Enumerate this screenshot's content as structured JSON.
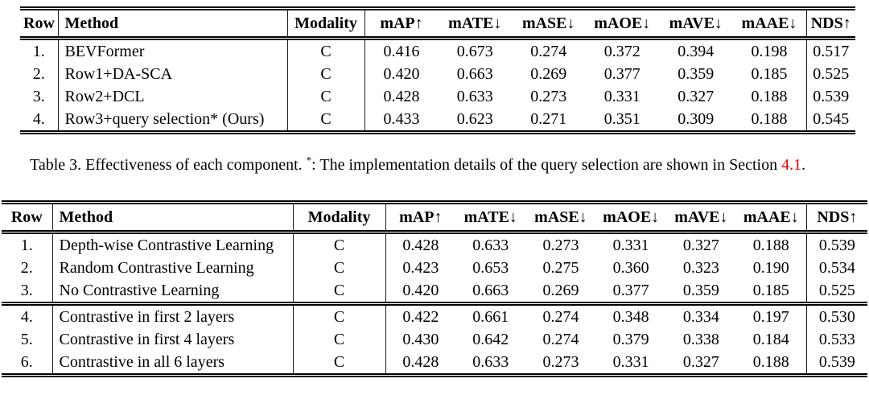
{
  "colors": {
    "background": "#ffffff",
    "text": "#000000",
    "section_link_red": "#ee0000",
    "rule": "#000000"
  },
  "table1": {
    "columns": [
      "Row",
      "Method",
      "Modality",
      "mAP↑",
      "mATE↓",
      "mASE↓",
      "mAOE↓",
      "mAVE↓",
      "mAAE↓",
      "NDS↑"
    ],
    "rows": [
      [
        "1.",
        "BEVFormer",
        "C",
        "0.416",
        "0.673",
        "0.274",
        "0.372",
        "0.394",
        "0.198",
        "0.517"
      ],
      [
        "2.",
        "Row1+DA-SCA",
        "C",
        "0.420",
        "0.663",
        "0.269",
        "0.377",
        "0.359",
        "0.185",
        "0.525"
      ],
      [
        "3.",
        "Row2+DCL",
        "C",
        "0.428",
        "0.633",
        "0.273",
        "0.331",
        "0.327",
        "0.188",
        "0.539"
      ],
      [
        "4.",
        "Row3+query selection* (Ours)",
        "C",
        "0.433",
        "0.623",
        "0.271",
        "0.351",
        "0.309",
        "0.188",
        "0.545"
      ]
    ]
  },
  "caption": {
    "text1": "Table 3. Effectiveness of each component. ",
    "star": "*",
    "text2": ": The implementation details of the query selection are shown in Section ",
    "link": "4.1",
    "text3": "."
  },
  "table2": {
    "columns": [
      "Row",
      "Method",
      "Modality",
      "mAP↑",
      "mATE↓",
      "mASE↓",
      "mAOE↓",
      "mAVE↓",
      "mAAE↓",
      "NDS↑"
    ],
    "group1_rows": [
      [
        "1.",
        "Depth-wise Contrastive Learning",
        "C",
        "0.428",
        "0.633",
        "0.273",
        "0.331",
        "0.327",
        "0.188",
        "0.539"
      ],
      [
        "2.",
        "Random Contrastive Learning",
        "C",
        "0.423",
        "0.653",
        "0.275",
        "0.360",
        "0.323",
        "0.190",
        "0.534"
      ],
      [
        "3.",
        "No Contrastive Learning",
        "C",
        "0.420",
        "0.663",
        "0.269",
        "0.377",
        "0.359",
        "0.185",
        "0.525"
      ]
    ],
    "group2_rows": [
      [
        "4.",
        "Contrastive in first 2 layers",
        "C",
        "0.422",
        "0.661",
        "0.274",
        "0.348",
        "0.334",
        "0.197",
        "0.530"
      ],
      [
        "5.",
        "Contrastive in first 4 layers",
        "C",
        "0.430",
        "0.642",
        "0.274",
        "0.379",
        "0.338",
        "0.184",
        "0.533"
      ],
      [
        "6.",
        "Contrastive in all 6 layers",
        "C",
        "0.428",
        "0.633",
        "0.273",
        "0.331",
        "0.327",
        "0.188",
        "0.539"
      ]
    ]
  }
}
